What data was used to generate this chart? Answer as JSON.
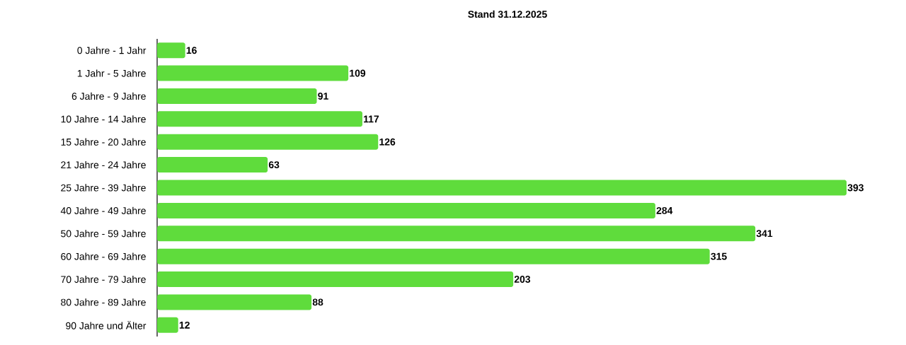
{
  "chart_data": {
    "type": "bar",
    "orientation": "horizontal",
    "title": "Stand 31.12.2025",
    "categories": [
      "0 Jahre - 1 Jahr",
      "1 Jahr - 5 Jahre",
      "6 Jahre - 9 Jahre",
      "10 Jahre - 14 Jahre",
      "15 Jahre - 20 Jahre",
      "21 Jahre - 24 Jahre",
      "25 Jahre - 39 Jahre",
      "40 Jahre - 49 Jahre",
      "50 Jahre - 59 Jahre",
      "60 Jahre - 69 Jahre",
      "70 Jahre - 79 Jahre",
      "80 Jahre - 89 Jahre",
      "90 Jahre und Älter"
    ],
    "values": [
      16,
      109,
      91,
      117,
      126,
      63,
      393,
      284,
      341,
      315,
      203,
      88,
      12
    ],
    "color": "#5fdc3c",
    "data_labels": true
  }
}
